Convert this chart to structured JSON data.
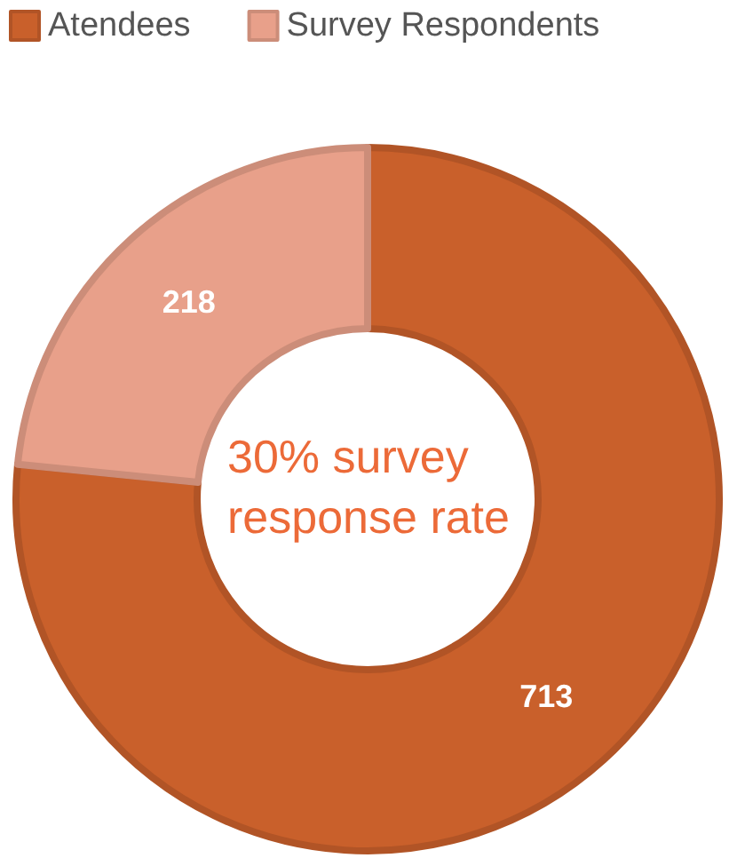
{
  "chart_data": {
    "type": "donut",
    "categories": [
      "Atendees",
      "Survey Respondents"
    ],
    "values": [
      713,
      218
    ],
    "colors": [
      "#c9602b",
      "#e8a08a"
    ],
    "data_labels": true,
    "legend": "top left",
    "annotations": [
      "30% survey response rate"
    ]
  }
}
